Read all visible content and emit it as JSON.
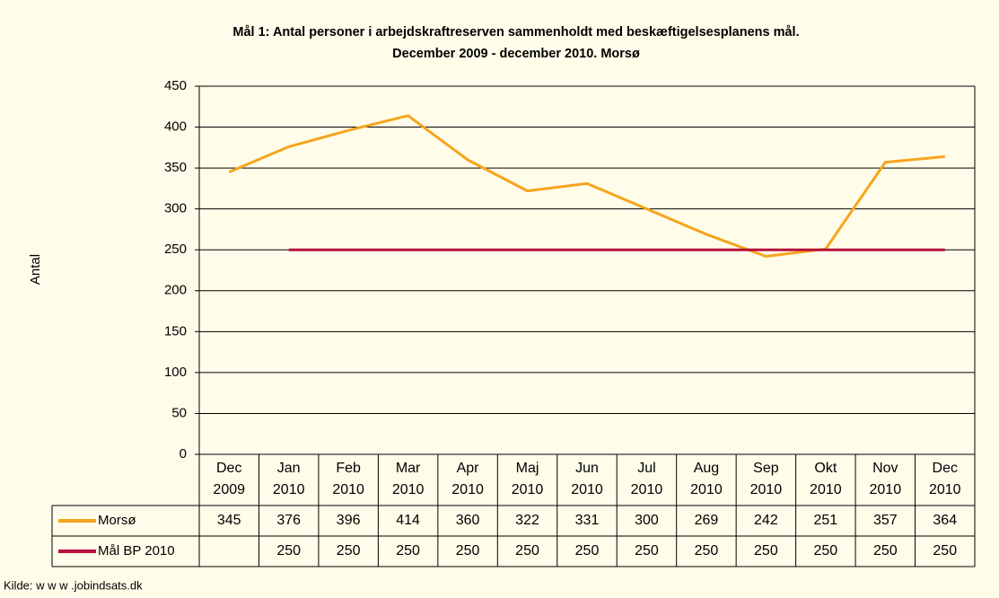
{
  "chart_data": {
    "type": "line",
    "title": "Mål 1: Antal personer i arbejdskraftreserven sammenholdt med beskæftigelsesplanens mål.",
    "subtitle": "December 2009 - december 2010. Morsø",
    "ylabel": "Antal",
    "source": "Kilde: w w w .jobindsats.dk",
    "categories": [
      "Dec 2009",
      "Jan 2010",
      "Feb 2010",
      "Mar 2010",
      "Apr 2010",
      "Maj 2010",
      "Jun 2010",
      "Jul 2010",
      "Aug 2010",
      "Sep 2010",
      "Okt 2010",
      "Nov 2010",
      "Dec 2010"
    ],
    "series": [
      {
        "name": "Morsø",
        "color": "#f7a41d",
        "values": [
          345,
          376,
          396,
          414,
          360,
          322,
          331,
          300,
          269,
          242,
          251,
          357,
          364
        ]
      },
      {
        "name": "Mål BP 2010",
        "color": "#b5123c",
        "values": [
          null,
          250,
          250,
          250,
          250,
          250,
          250,
          250,
          250,
          250,
          250,
          250,
          250
        ]
      }
    ],
    "ylim": [
      0,
      450
    ],
    "yticks": [
      0,
      50,
      100,
      150,
      200,
      250,
      300,
      350,
      400,
      450
    ],
    "grid": true
  }
}
